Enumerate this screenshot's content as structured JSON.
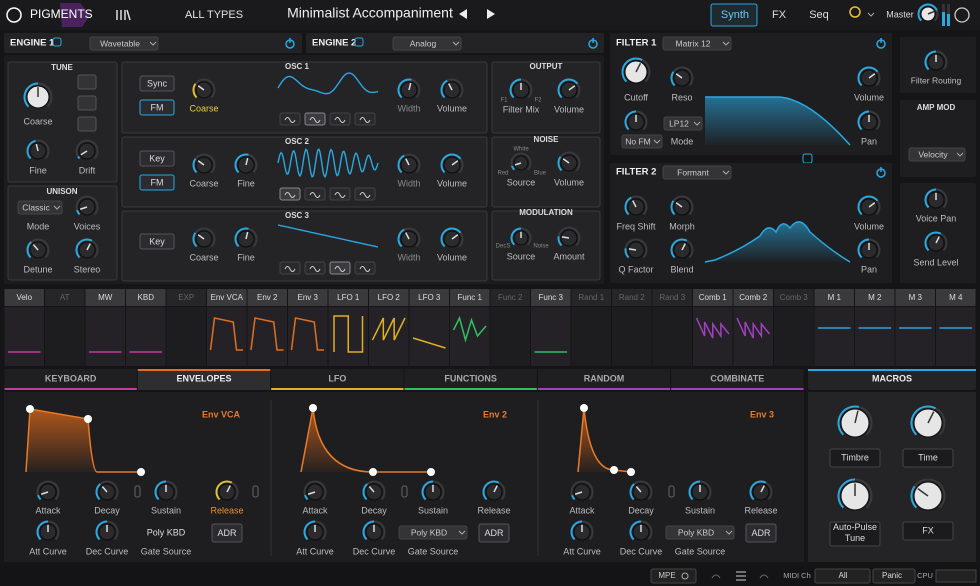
{
  "top_bar": {
    "logo": "PIGMENTS",
    "browser": "ALL TYPES",
    "preset": "Minimalist Accompaniment",
    "tabs": [
      "Synth",
      "FX",
      "Seq"
    ],
    "master": "Master"
  },
  "engine1": {
    "title": "ENGINE 1",
    "type": "Wavetable",
    "tune": {
      "title": "TUNE",
      "knobs": [
        "Coarse",
        "Fine",
        "Drift"
      ]
    },
    "unison": {
      "title": "UNISON",
      "mode": "Classic",
      "labels": [
        "Mode",
        "Voices",
        "Detune",
        "Stereo"
      ]
    },
    "osc1": {
      "title": "OSC 1",
      "buttons": [
        "Sync",
        "FM"
      ],
      "knobs": [
        "Coarse",
        "Width",
        "Volume"
      ]
    },
    "osc2": {
      "title": "OSC 2",
      "buttons": [
        "Key",
        "FM"
      ],
      "knobs": [
        "Coarse",
        "Fine",
        "Width",
        "Volume"
      ]
    },
    "osc3": {
      "title": "OSC 3",
      "buttons": [
        "Key"
      ],
      "knobs": [
        "Coarse",
        "Fine",
        "Width",
        "Volume"
      ]
    },
    "output": {
      "title": "OUTPUT",
      "f1": "F1",
      "f2": "F2",
      "knobs": [
        "Filter Mix",
        "Volume"
      ]
    },
    "noise": {
      "title": "NOISE",
      "colors": [
        "White",
        "Red",
        "Blue"
      ],
      "knobs": [
        "Source",
        "Volume"
      ]
    },
    "modulation": {
      "title": "MODULATION",
      "sources": [
        "DecS",
        "Noise"
      ],
      "knobs": [
        "Source",
        "Amount"
      ]
    }
  },
  "engine2": {
    "title": "ENGINE 2",
    "type": "Analog"
  },
  "filter1": {
    "title": "FILTER 1",
    "type": "Matrix 12",
    "knobs": [
      "Cutoff",
      "Reso",
      "Mode",
      "Volume",
      "Pan"
    ],
    "fm": "No FM",
    "mode": "LP12"
  },
  "filter2": {
    "title": "FILTER 2",
    "type": "Formant",
    "knobs": [
      "Freq Shift",
      "Morph",
      "Q Factor",
      "Blend",
      "Volume",
      "Pan"
    ]
  },
  "side": {
    "routing": "Filter Routing",
    "amp_mod": "AMP MOD",
    "amp_source": "Velocity",
    "knobs": [
      "Voice Pan",
      "Send Level"
    ]
  },
  "mod_sources": [
    "Velo",
    "AT",
    "MW",
    "KBD",
    "EXP",
    "Env VCA",
    "Env 2",
    "Env 3",
    "LFO 1",
    "LFO 2",
    "LFO 3",
    "Func 1",
    "Func 2",
    "Func 3",
    "Rand 1",
    "Rand 2",
    "Rand 3",
    "Comb 1",
    "Comb 2",
    "Comb 3",
    "M 1",
    "M 2",
    "M 3",
    "M 4"
  ],
  "tabs": [
    "KEYBOARD",
    "ENVELOPES",
    "LFO",
    "FUNCTIONS",
    "RANDOM",
    "COMBINATE"
  ],
  "envelopes": [
    {
      "name": "Env VCA",
      "knobs": [
        "Attack",
        "Decay",
        "Sustain",
        "Release",
        "Att Curve",
        "Dec Curve"
      ],
      "mode": "Poly KBD",
      "gate": "Gate Source",
      "button": "ADR"
    },
    {
      "name": "Env 2",
      "knobs": [
        "Attack",
        "Decay",
        "Sustain",
        "Release",
        "Att Curve",
        "Dec Curve"
      ],
      "mode": "Poly KBD",
      "gate": "Gate Source",
      "button": "ADR"
    },
    {
      "name": "Env 3",
      "knobs": [
        "Attack",
        "Decay",
        "Sustain",
        "Release",
        "Att Curve",
        "Dec Curve"
      ],
      "mode": "Poly KBD",
      "gate": "Gate Source",
      "button": "ADR"
    }
  ],
  "macros": {
    "title": "MACROS",
    "knobs": [
      "Timbre",
      "Time",
      "Auto-Pulse Tune",
      "FX"
    ]
  },
  "status": {
    "mpe": "MPE",
    "midi": "MIDI Ch",
    "channel": "All",
    "panic": "Panic",
    "cpu": "CPU"
  }
}
